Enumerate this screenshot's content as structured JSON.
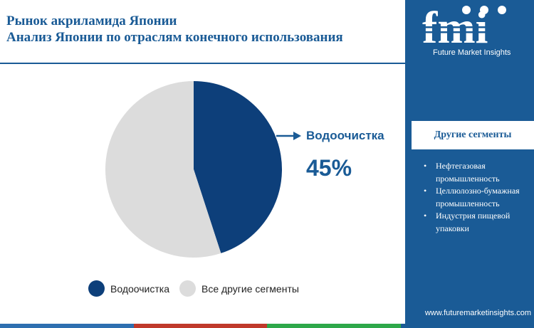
{
  "header": {
    "title_line1": "Рынок акриламида Японии",
    "title_line2": "Анализ Японии по отраслям конечного использования"
  },
  "brand": {
    "logo_text": "fmi",
    "logo_subtitle": "Future Market Insights",
    "website": "www.futuremarketinsights.com",
    "primary_color": "#1a5b96"
  },
  "sidebar": {
    "heading": "Другие сегменты",
    "items": [
      {
        "bullet": "•",
        "text": "Нефтегазовая промышленность"
      },
      {
        "bullet": "•",
        "text": "Целлюлозно-бумажная промышленность"
      },
      {
        "bullet": "•",
        "text": "Индустрия пищевой упаковки"
      }
    ]
  },
  "chart_data": {
    "type": "pie",
    "title": "",
    "slices": [
      {
        "label": "Водоочистка",
        "value": 45,
        "color": "#0d3f7a"
      },
      {
        "label": "Все другие сегменты",
        "value": 55,
        "color": "#dcdcdc"
      }
    ],
    "callout": {
      "label": "Водоочистка",
      "value_text": "45%"
    },
    "legend_position": "bottom"
  },
  "bottom_bar_colors": [
    "#2e6fb0",
    "#c0392b",
    "#2ea84a",
    "#1a5b96"
  ]
}
